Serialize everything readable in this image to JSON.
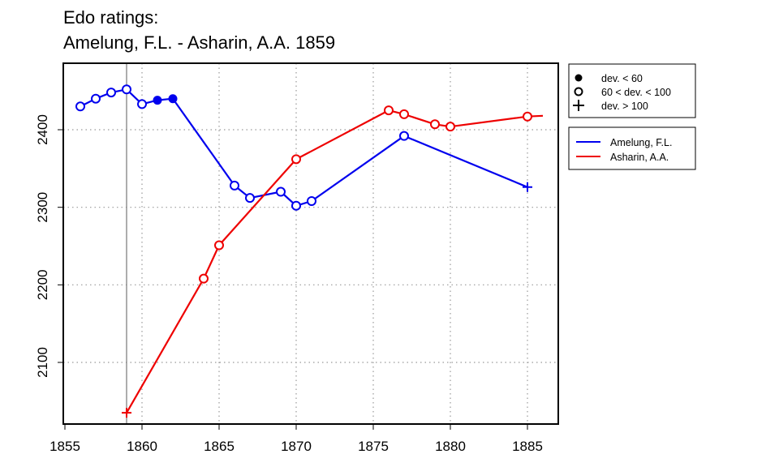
{
  "chart_data": {
    "type": "line",
    "title": "Edo ratings:",
    "subtitle": "Amelung, F.L. - Asharin, A.A. 1859",
    "xlabel": "",
    "ylabel": "",
    "xlim": [
      1855,
      1887
    ],
    "ylim": [
      2030,
      2488
    ],
    "x_ticks": [
      1855,
      1860,
      1865,
      1870,
      1875,
      1880,
      1885
    ],
    "y_ticks": [
      2100,
      2200,
      2300,
      2400
    ],
    "grid": true,
    "marker_year": 1859,
    "marker_legend": [
      {
        "symbol": "filled-circle",
        "label": "dev. < 60"
      },
      {
        "symbol": "open-circle",
        "label": "60 < dev. < 100"
      },
      {
        "symbol": "plus",
        "label": "dev. > 100"
      }
    ],
    "series": [
      {
        "name": "Amelung, F.L.",
        "color": "#0000ee",
        "points": [
          {
            "x": 1856,
            "y": 2430,
            "marker": "open"
          },
          {
            "x": 1857,
            "y": 2440,
            "marker": "open"
          },
          {
            "x": 1858,
            "y": 2448,
            "marker": "open"
          },
          {
            "x": 1859,
            "y": 2452,
            "marker": "open"
          },
          {
            "x": 1860,
            "y": 2433,
            "marker": "open"
          },
          {
            "x": 1861,
            "y": 2438,
            "marker": "filled"
          },
          {
            "x": 1862,
            "y": 2440,
            "marker": "filled"
          },
          {
            "x": 1866,
            "y": 2328,
            "marker": "open"
          },
          {
            "x": 1867,
            "y": 2312,
            "marker": "open"
          },
          {
            "x": 1869,
            "y": 2320,
            "marker": "open"
          },
          {
            "x": 1870,
            "y": 2302,
            "marker": "open"
          },
          {
            "x": 1871,
            "y": 2308,
            "marker": "open"
          },
          {
            "x": 1877,
            "y": 2392,
            "marker": "open"
          },
          {
            "x": 1885,
            "y": 2326,
            "marker": "plus"
          }
        ]
      },
      {
        "name": "Asharin, A.A.",
        "color": "#ee0000",
        "points": [
          {
            "x": 1859,
            "y": 2035,
            "marker": "plus"
          },
          {
            "x": 1864,
            "y": 2208,
            "marker": "open"
          },
          {
            "x": 1865,
            "y": 2251,
            "marker": "open"
          },
          {
            "x": 1870,
            "y": 2362,
            "marker": "open"
          },
          {
            "x": 1876,
            "y": 2425,
            "marker": "open"
          },
          {
            "x": 1877,
            "y": 2420,
            "marker": "open"
          },
          {
            "x": 1879,
            "y": 2407,
            "marker": "open"
          },
          {
            "x": 1880,
            "y": 2404,
            "marker": "open"
          },
          {
            "x": 1885,
            "y": 2417,
            "marker": "open"
          },
          {
            "x": 1886,
            "y": 2418,
            "marker": "none"
          }
        ]
      }
    ]
  }
}
